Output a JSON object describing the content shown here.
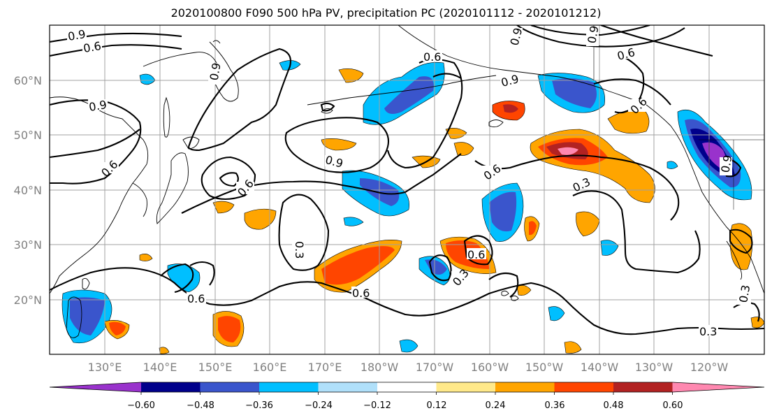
{
  "title": "2020100800 F090 500 hPa PV, precipitation PC (2020101112 - 2020101212)",
  "latitude_labels": [
    "60°N",
    "50°N",
    "40°N",
    "30°N",
    "20°N"
  ],
  "longitude_labels": [
    "130°E",
    "140°E",
    "150°E",
    "160°E",
    "170°E",
    "180°W",
    "170°W",
    "160°W",
    "150°W",
    "140°W",
    "130°W",
    "120°W"
  ],
  "contour_labels": [
    "0.9",
    "0.6",
    "0.9",
    "0.6",
    "0.9",
    "0.6",
    "0.9",
    "0.6",
    "0.9",
    "0.6",
    "0.6",
    "0.9",
    "0.6",
    "0.3",
    "0.6",
    "0.3",
    "0.6",
    "0.3",
    "0.3",
    "0.3",
    "0.6",
    "0.9",
    "0.9"
  ],
  "colorbar": {
    "tick_labels": [
      "−0.60",
      "−0.48",
      "−0.36",
      "−0.24",
      "−0.12",
      "0.12",
      "0.24",
      "0.36",
      "0.48",
      "0.60"
    ],
    "colors": [
      "#9932cc",
      "#00008b",
      "#3a55cc",
      "#00bfff",
      "#b0e0fa",
      "#ffffff",
      "#ffe98a",
      "#ffa500",
      "#ff4500",
      "#b22222",
      "#ff88b0"
    ],
    "levels": [
      -0.72,
      -0.6,
      -0.48,
      -0.36,
      -0.24,
      -0.12,
      0.12,
      0.24,
      0.36,
      0.48,
      0.6,
      0.72
    ]
  }
}
